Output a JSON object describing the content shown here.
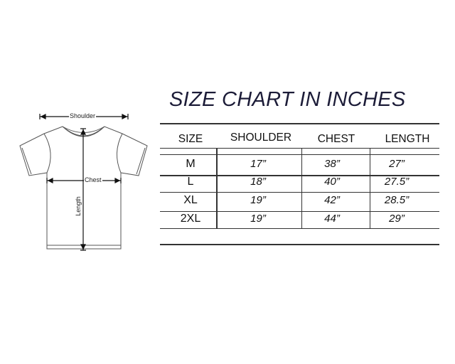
{
  "title": "SIZE CHART IN INCHES",
  "diagram": {
    "shoulder_label": "Shoulder",
    "chest_label": "Chest",
    "length_label": "Length",
    "icon": "t-shirt-outline"
  },
  "table": {
    "headers": [
      "SIZE",
      "SHOULDER",
      "CHEST",
      "LENGTH"
    ],
    "rows": [
      [
        "M",
        "17”",
        "38”",
        "27”"
      ],
      [
        "L",
        "18”",
        "40”",
        "27.5”"
      ],
      [
        "XL",
        "19”",
        "42”",
        "28.5”"
      ],
      [
        "2XL",
        "19”",
        "44”",
        "29”"
      ]
    ]
  }
}
